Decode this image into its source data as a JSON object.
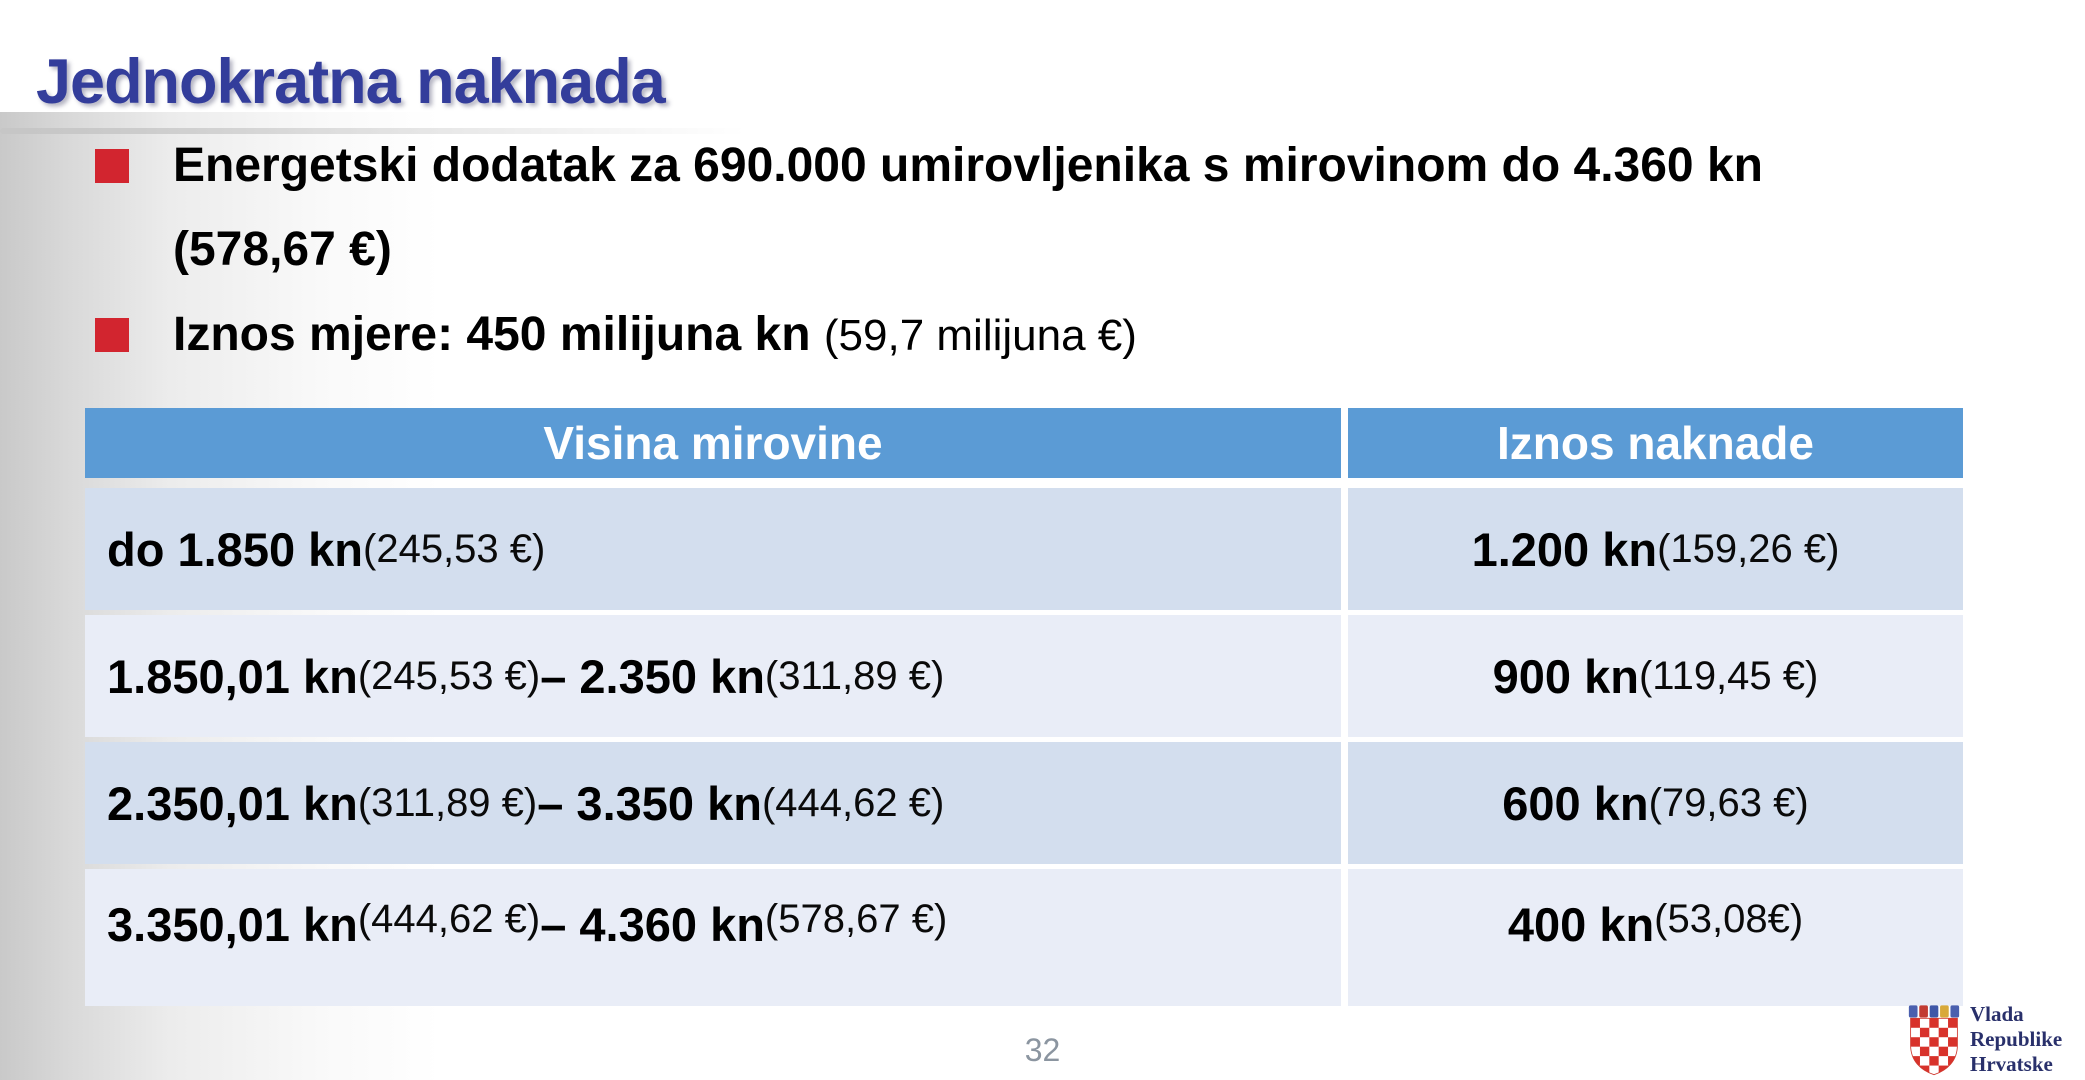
{
  "title": "Jednokratna naknada",
  "bullets": [
    {
      "bold": "Energetski dodatak za 690.000 umirovljenika s mirovinom do 4.360 kn\n(578,67 €)",
      "regular": ""
    },
    {
      "bold": "Iznos mjere: 450 milijuna kn ",
      "regular": "(59,7 milijuna €)"
    }
  ],
  "table": {
    "headers": [
      "Visina mirovine",
      "Iznos naknade"
    ],
    "rows": [
      {
        "pension": [
          {
            "t": "do 1.850 kn",
            "b": true
          },
          {
            "t": " (245,53 €)",
            "b": false
          }
        ],
        "amount": [
          {
            "t": "1.200 kn",
            "b": true
          },
          {
            "t": " (159,26 €)",
            "b": false
          }
        ]
      },
      {
        "pension": [
          {
            "t": "1.850,01 kn",
            "b": true
          },
          {
            "t": " (245,53 €) ",
            "b": false
          },
          {
            "t": "– 2.350 kn",
            "b": true
          },
          {
            "t": " (311,89 €)",
            "b": false
          }
        ],
        "amount": [
          {
            "t": "900 kn",
            "b": true
          },
          {
            "t": " (119,45 €)",
            "b": false
          }
        ]
      },
      {
        "pension": [
          {
            "t": "2.350,01 kn",
            "b": true
          },
          {
            "t": " (311,89 €) ",
            "b": false
          },
          {
            "t": "– 3.350 kn",
            "b": true
          },
          {
            "t": " (444,62 €)",
            "b": false
          }
        ],
        "amount": [
          {
            "t": "600 kn",
            "b": true
          },
          {
            "t": " (79,63 €)",
            "b": false
          }
        ]
      },
      {
        "pension": [
          {
            "t": "3.350,01 kn",
            "b": true
          },
          {
            "t": " (444,62 €) ",
            "b": false
          },
          {
            "t": "– 4.360 kn",
            "b": true
          },
          {
            "t": " (578,67 €)",
            "b": false
          }
        ],
        "amount": [
          {
            "t": "400 kn",
            "b": true
          },
          {
            "t": " (53,08€)",
            "b": false
          }
        ]
      }
    ]
  },
  "footer": {
    "page_number": "32"
  },
  "logo": {
    "lines": [
      "Vlada",
      "Republike",
      "Hrvatske"
    ]
  },
  "colors": {
    "title": "#333d9b",
    "bullet_square": "#d2252f",
    "table_header_bg": "#5b9bd5",
    "table_header_text": "#ffffff",
    "row_dark": "#d3deee",
    "row_light": "#e9edf7",
    "page_number": "#8b95a0",
    "logo_text": "#29306b",
    "checker_red": "#d8322b"
  }
}
